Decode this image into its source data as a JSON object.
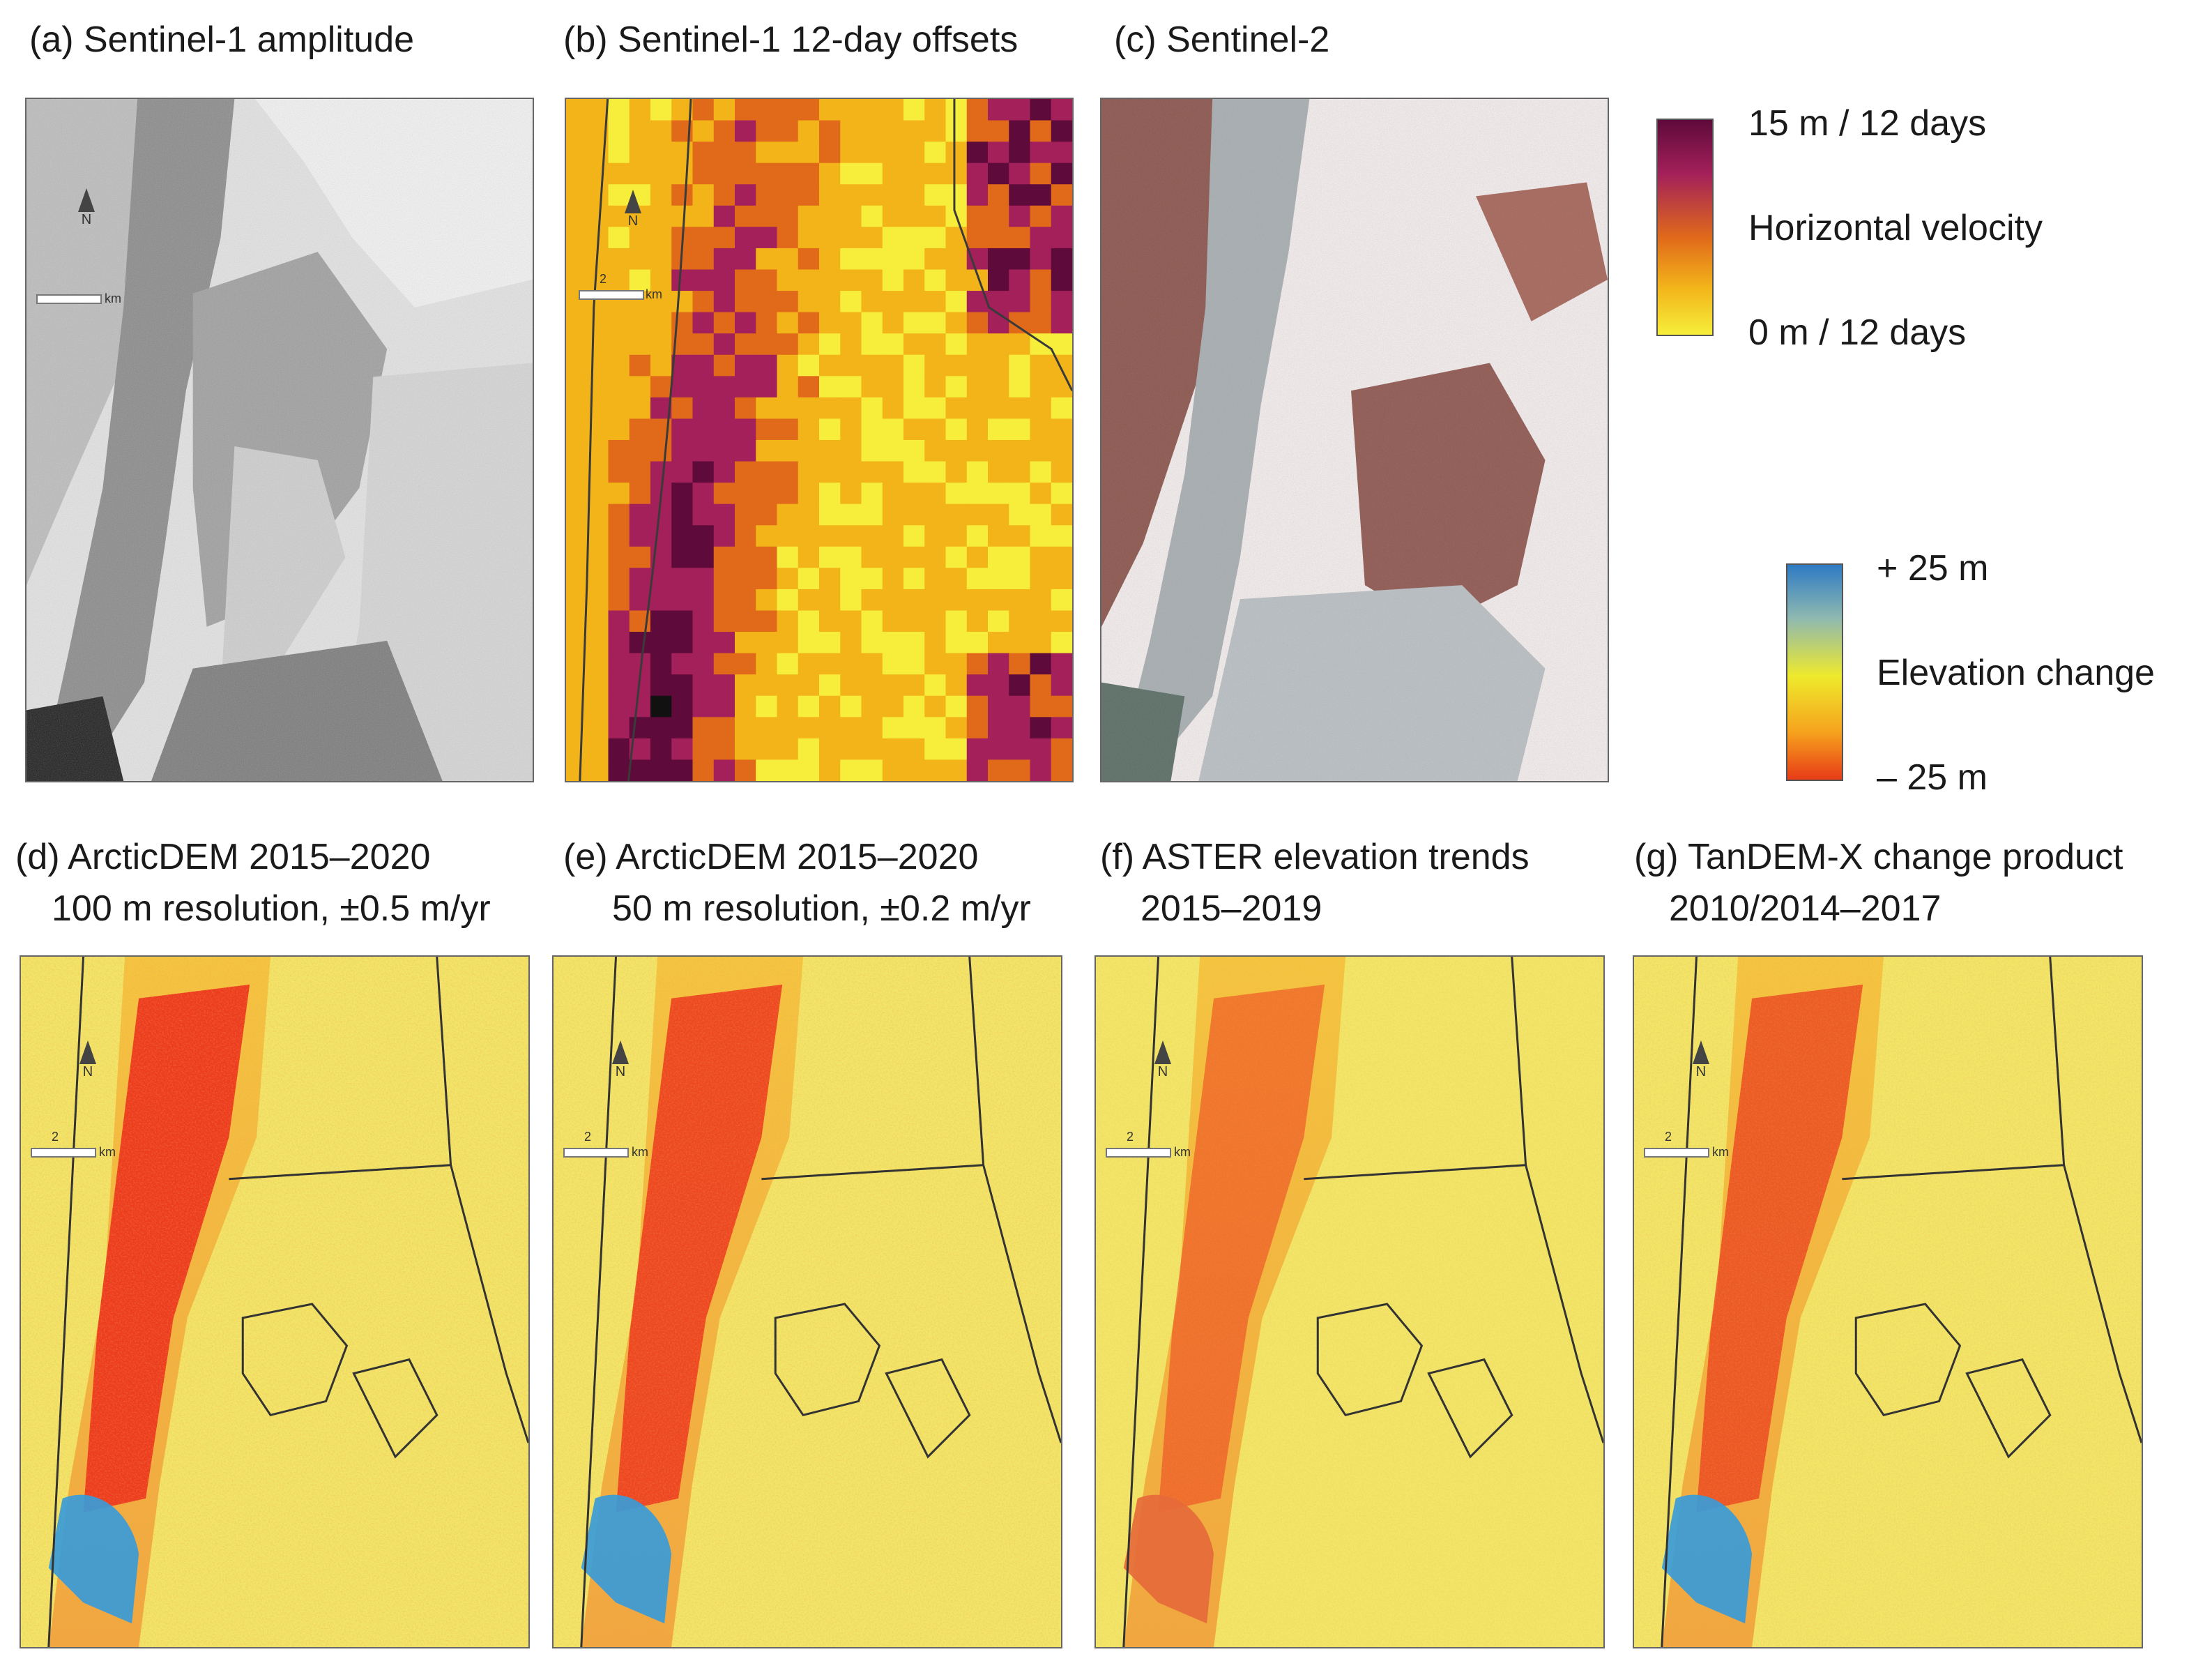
{
  "figure": {
    "top_row": {
      "a": {
        "title": "(a) Sentinel-1 amplitude"
      },
      "b": {
        "title": "(b) Sentinel-1 12-day offsets"
      },
      "c": {
        "title": "(c) Sentinel-2"
      }
    },
    "velocity_legend": {
      "max": "15 m / 12 days",
      "label": "Horizontal velocity",
      "min": "0 m / 12 days",
      "colors": [
        "#5e0a3a",
        "#a3205a",
        "#e06a1a",
        "#f3b41a",
        "#f6ee3a"
      ]
    },
    "elevation_legend": {
      "max": "+ 25 m",
      "label": "Elevation change",
      "min": "– 25 m",
      "colors": [
        "#2e7bc4",
        "#eeea2c",
        "#e83b17"
      ]
    },
    "bottom_row": {
      "d": {
        "title": "(d) ArcticDEM 2015–2020",
        "subtitle": "100 m resolution, ±0.5 m/yr"
      },
      "e": {
        "title": "(e) ArcticDEM 2015–2020",
        "subtitle": "50 m resolution, ±0.2 m/yr"
      },
      "f": {
        "title": "(f) ASTER elevation trends",
        "subtitle": "2015–2019"
      },
      "g": {
        "title": "(g) TanDEM-X change product",
        "subtitle": "2010/2014–2017"
      }
    },
    "map_annotations": {
      "north": "N",
      "scale_value": "2",
      "scale_unit": "km"
    }
  }
}
